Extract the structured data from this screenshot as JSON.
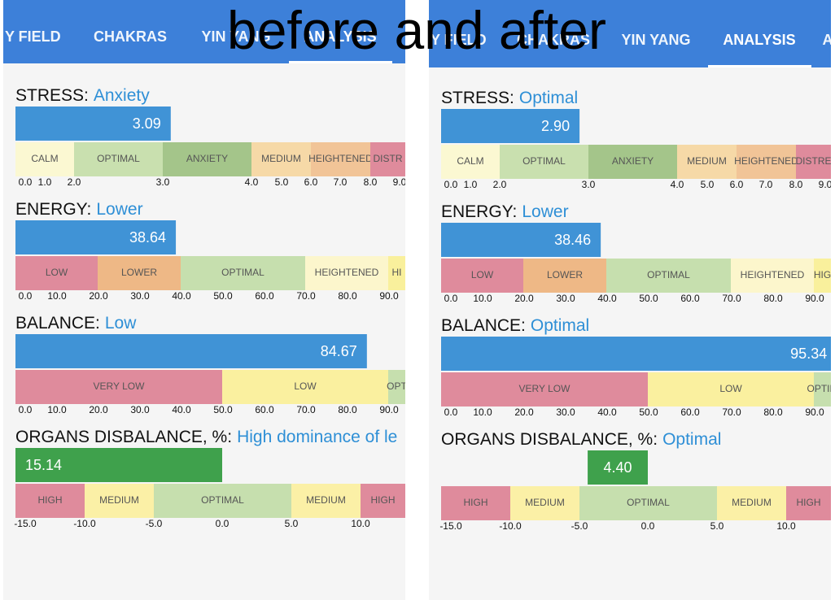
{
  "caption": "before and after",
  "panels": [
    {
      "tabs": [
        "Y FIELD",
        "CHAKRAS",
        "YIN YANG",
        "ANALYSIS"
      ],
      "active_tab": 3,
      "metrics": [
        {
          "label": "STRESS:",
          "status": "Anxiety",
          "value": 3.09,
          "bar_color": "#4093d6",
          "bands": [
            {
              "label": "CALM",
              "color": "#fbf8d2"
            },
            {
              "label": "OPTIMAL",
              "color": "#c9e0af"
            },
            {
              "label": "ANXIETY",
              "color": "#a4c58a"
            },
            {
              "label": "MEDIUM",
              "color": "#f6d9a7"
            },
            {
              "label": "HEIGHTENED",
              "color": "#f1c497"
            },
            {
              "label": "DISTR",
              "color": "#df8b9c"
            }
          ],
          "ticks": [
            {
              "value": 0,
              "label": "0.0"
            },
            {
              "value": 1,
              "label": "1.0"
            },
            {
              "value": 2,
              "label": "2.0"
            },
            {
              "value": 3,
              "label": "3.0"
            },
            {
              "value": 4,
              "label": "4.0"
            },
            {
              "value": 5,
              "label": "5.0"
            },
            {
              "value": 6,
              "label": "6.0"
            },
            {
              "value": 7,
              "label": "7.0"
            },
            {
              "value": 8,
              "label": "8.0"
            },
            {
              "value": 9,
              "label": "9.0"
            }
          ]
        },
        {
          "label": "ENERGY:",
          "status": "Lower",
          "value": 38.64,
          "bar_color": "#4093d6",
          "bands": [
            {
              "label": "LOW",
              "color": "#df8b9c"
            },
            {
              "label": "LOWER",
              "color": "#eeb886"
            },
            {
              "label": "OPTIMAL",
              "color": "#c6dfae"
            },
            {
              "label": "HEIGHTENED",
              "color": "#fcf6cc"
            },
            {
              "label": "HI",
              "color": "#f9f09c"
            }
          ],
          "ticks": [
            {
              "value": 0,
              "label": "0.0"
            },
            {
              "value": 10,
              "label": "10.0"
            },
            {
              "value": 20,
              "label": "20.0"
            },
            {
              "value": 30,
              "label": "30.0"
            },
            {
              "value": 40,
              "label": "40.0"
            },
            {
              "value": 50,
              "label": "50.0"
            },
            {
              "value": 60,
              "label": "60.0"
            },
            {
              "value": 70,
              "label": "70.0"
            },
            {
              "value": 80,
              "label": "80.0"
            },
            {
              "value": 90,
              "label": "90.0"
            }
          ]
        },
        {
          "label": "BALANCE:",
          "status": "Low",
          "value": 84.67,
          "bar_color": "#4093d6",
          "bands": [
            {
              "label": "VERY LOW",
              "color": "#df8b9c"
            },
            {
              "label": "LOW",
              "color": "#faf09f"
            },
            {
              "label": "OPT",
              "color": "#c6dfae"
            }
          ],
          "ticks": [
            {
              "value": 0,
              "label": "0.0"
            },
            {
              "value": 10,
              "label": "10.0"
            },
            {
              "value": 20,
              "label": "20.0"
            },
            {
              "value": 30,
              "label": "30.0"
            },
            {
              "value": 40,
              "label": "40.0"
            },
            {
              "value": 50,
              "label": "50.0"
            },
            {
              "value": 60,
              "label": "60.0"
            },
            {
              "value": 70,
              "label": "70.0"
            },
            {
              "value": 80,
              "label": "80.0"
            },
            {
              "value": 90,
              "label": "90.0"
            }
          ]
        },
        {
          "label": "ORGANS DISBALANCE, %:",
          "status": "High dominance of le",
          "value": 15.14,
          "bar_color": "#3fa14c",
          "bands": [
            {
              "label": "HIGH",
              "color": "#df8b9c"
            },
            {
              "label": "MEDIUM",
              "color": "#fbf0a6"
            },
            {
              "label": "OPTIMAL",
              "color": "#c6dfae"
            },
            {
              "label": "MEDIUM",
              "color": "#fbf0a6"
            },
            {
              "label": "HIGH",
              "color": "#df8b9c"
            }
          ],
          "ticks": [
            {
              "value": -15,
              "label": "-15.0"
            },
            {
              "value": -10,
              "label": "-10.0"
            },
            {
              "value": -5,
              "label": "-5.0"
            },
            {
              "value": 0,
              "label": "0.0"
            },
            {
              "value": 5,
              "label": "5.0"
            },
            {
              "value": 10,
              "label": "10.0"
            }
          ]
        }
      ]
    },
    {
      "tabs": [
        "Y FIELD",
        "CHAKRAS",
        "YIN YANG",
        "ANALYSIS",
        "A"
      ],
      "active_tab": 3,
      "metrics": [
        {
          "label": "STRESS:",
          "status": "Optimal",
          "value": {
            "value": 2.9,
            "label": "2.90"
          },
          "bar_color": "#4093d6",
          "bands": [
            {
              "label": "CALM",
              "color": "#fbf8d2"
            },
            {
              "label": "OPTIMAL",
              "color": "#c9e0af"
            },
            {
              "label": "ANXIETY",
              "color": "#a4c58a"
            },
            {
              "label": "MEDIUM",
              "color": "#f6d9a7"
            },
            {
              "label": "HEIGHTENED",
              "color": "#f1c497"
            },
            {
              "label": "DISTRE",
              "color": "#df8b9c"
            }
          ],
          "ticks": [
            {
              "value": 0,
              "label": "0.0"
            },
            {
              "value": 1,
              "label": "1.0"
            },
            {
              "value": 2,
              "label": "2.0"
            },
            {
              "value": 3,
              "label": "3.0"
            },
            {
              "value": 4,
              "label": "4.0"
            },
            {
              "value": 5,
              "label": "5.0"
            },
            {
              "value": 6,
              "label": "6.0"
            },
            {
              "value": 7,
              "label": "7.0"
            },
            {
              "value": 8,
              "label": "8.0"
            },
            {
              "value": 9,
              "label": "9.0"
            }
          ]
        },
        {
          "label": "ENERGY:",
          "status": "Lower",
          "value": 38.46,
          "bar_color": "#4093d6",
          "bands": [
            {
              "label": "LOW",
              "color": "#df8b9c"
            },
            {
              "label": "LOWER",
              "color": "#eeb886"
            },
            {
              "label": "OPTIMAL",
              "color": "#c6dfae"
            },
            {
              "label": "HEIGHTENED",
              "color": "#fcf6cc"
            },
            {
              "label": "HIG",
              "color": "#f9f09c"
            }
          ],
          "ticks": [
            {
              "value": 0,
              "label": "0.0"
            },
            {
              "value": 10,
              "label": "10.0"
            },
            {
              "value": 20,
              "label": "20.0"
            },
            {
              "value": 30,
              "label": "30.0"
            },
            {
              "value": 40,
              "label": "40.0"
            },
            {
              "value": 50,
              "label": "50.0"
            },
            {
              "value": 60,
              "label": "60.0"
            },
            {
              "value": 70,
              "label": "70.0"
            },
            {
              "value": 80,
              "label": "80.0"
            },
            {
              "value": 90,
              "label": "90.0"
            }
          ]
        },
        {
          "label": "BALANCE:",
          "status": "Optimal",
          "value": 95.34,
          "bar_color": "#4093d6",
          "bands": [
            {
              "label": "VERY LOW",
              "color": "#df8b9c"
            },
            {
              "label": "LOW",
              "color": "#faf09f"
            },
            {
              "label": "OPTIM",
              "color": "#c6dfae"
            }
          ],
          "ticks": [
            {
              "value": 0,
              "label": "0.0"
            },
            {
              "value": 10,
              "label": "10.0"
            },
            {
              "value": 20,
              "label": "20.0"
            },
            {
              "value": 30,
              "label": "30.0"
            },
            {
              "value": 40,
              "label": "40.0"
            },
            {
              "value": 50,
              "label": "50.0"
            },
            {
              "value": 60,
              "label": "60.0"
            },
            {
              "value": 70,
              "label": "70.0"
            },
            {
              "value": 80,
              "label": "80.0"
            },
            {
              "value": 90,
              "label": "90.0"
            }
          ]
        },
        {
          "label": "ORGANS DISBALANCE, %:",
          "status": "Optimal",
          "value": {
            "value": 4.4,
            "label": "4.40"
          },
          "bar_color": "#3fa14c",
          "bands": [
            {
              "label": "HIGH",
              "color": "#df8b9c"
            },
            {
              "label": "MEDIUM",
              "color": "#fbf0a6"
            },
            {
              "label": "OPTIMAL",
              "color": "#c6dfae"
            },
            {
              "label": "MEDIUM",
              "color": "#fbf0a6"
            },
            {
              "label": "HIGH",
              "color": "#df8b9c"
            }
          ],
          "ticks": [
            {
              "value": -15,
              "label": "-15.0"
            },
            {
              "value": -10,
              "label": "-10.0"
            },
            {
              "value": -5,
              "label": "-5.0"
            },
            {
              "value": 0,
              "label": "0.0"
            },
            {
              "value": 5,
              "label": "5.0"
            },
            {
              "value": 10,
              "label": "10.0"
            }
          ]
        }
      ]
    }
  ]
}
